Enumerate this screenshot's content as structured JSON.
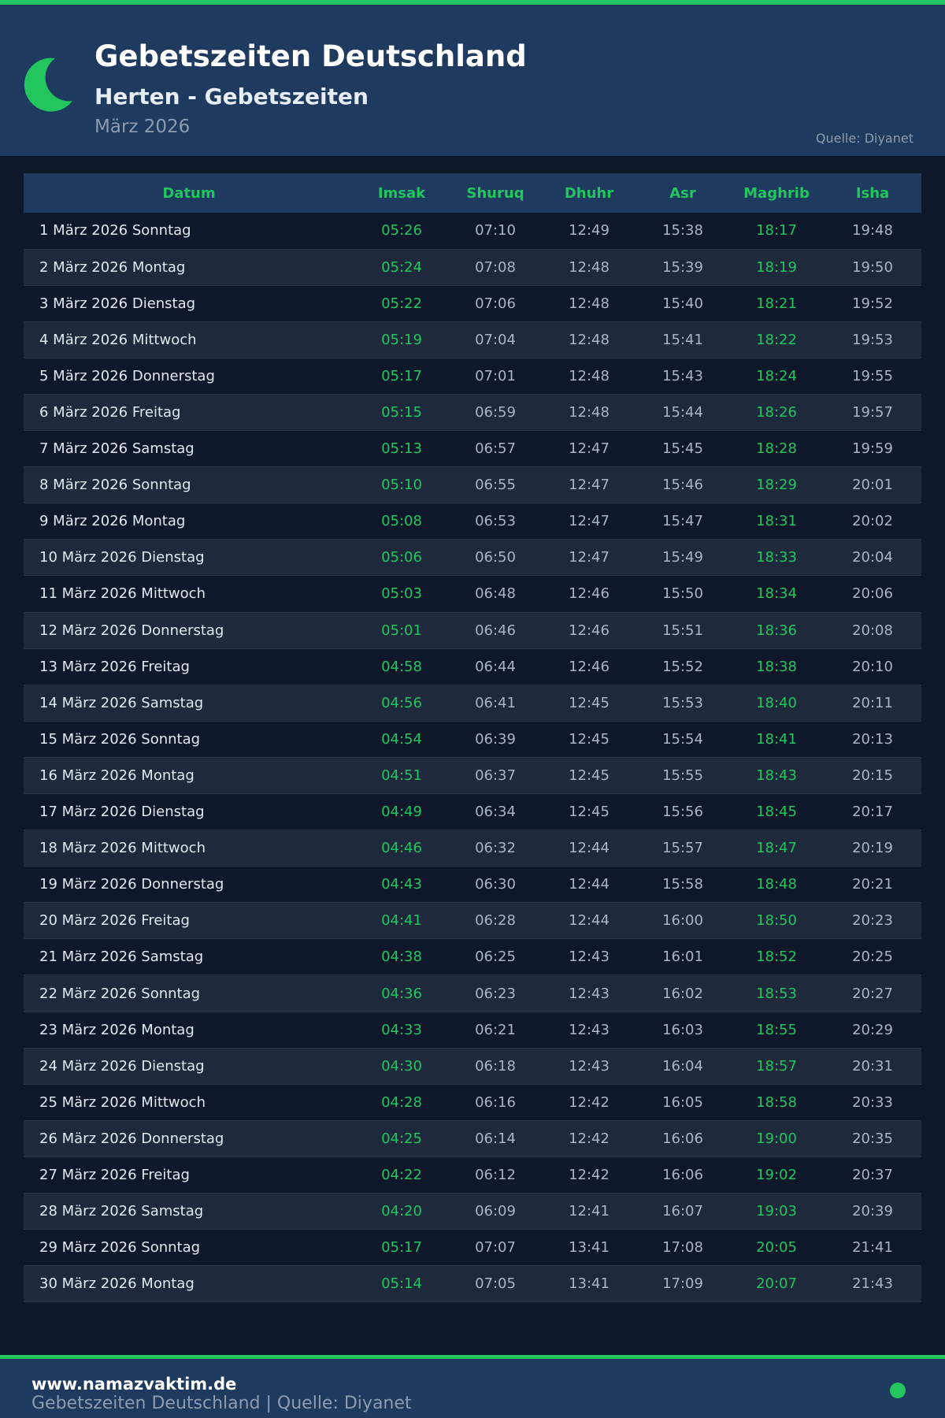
{
  "header": {
    "title": "Gebetszeiten Deutschland",
    "subtitle": "Herten - Gebetszeiten",
    "month": "März 2026",
    "source": "Quelle: Diyanet"
  },
  "colors": {
    "accent": "#22c55e",
    "header_bg": "#1e3a5f",
    "page_bg": "#0f172a"
  },
  "icons": {
    "logo": "crescent-moon-icon",
    "footer": "green-dot"
  },
  "table": {
    "columns": [
      "Datum",
      "Imsak",
      "Shuruq",
      "Dhuhr",
      "Asr",
      "Maghrib",
      "Isha"
    ],
    "rows": [
      [
        "1 März 2026 Sonntag",
        "05:26",
        "07:10",
        "12:49",
        "15:38",
        "18:17",
        "19:48"
      ],
      [
        "2 März 2026 Montag",
        "05:24",
        "07:08",
        "12:48",
        "15:39",
        "18:19",
        "19:50"
      ],
      [
        "3 März 2026 Dienstag",
        "05:22",
        "07:06",
        "12:48",
        "15:40",
        "18:21",
        "19:52"
      ],
      [
        "4 März 2026 Mittwoch",
        "05:19",
        "07:04",
        "12:48",
        "15:41",
        "18:22",
        "19:53"
      ],
      [
        "5 März 2026 Donnerstag",
        "05:17",
        "07:01",
        "12:48",
        "15:43",
        "18:24",
        "19:55"
      ],
      [
        "6 März 2026 Freitag",
        "05:15",
        "06:59",
        "12:48",
        "15:44",
        "18:26",
        "19:57"
      ],
      [
        "7 März 2026 Samstag",
        "05:13",
        "06:57",
        "12:47",
        "15:45",
        "18:28",
        "19:59"
      ],
      [
        "8 März 2026 Sonntag",
        "05:10",
        "06:55",
        "12:47",
        "15:46",
        "18:29",
        "20:01"
      ],
      [
        "9 März 2026 Montag",
        "05:08",
        "06:53",
        "12:47",
        "15:47",
        "18:31",
        "20:02"
      ],
      [
        "10 März 2026 Dienstag",
        "05:06",
        "06:50",
        "12:47",
        "15:49",
        "18:33",
        "20:04"
      ],
      [
        "11 März 2026 Mittwoch",
        "05:03",
        "06:48",
        "12:46",
        "15:50",
        "18:34",
        "20:06"
      ],
      [
        "12 März 2026 Donnerstag",
        "05:01",
        "06:46",
        "12:46",
        "15:51",
        "18:36",
        "20:08"
      ],
      [
        "13 März 2026 Freitag",
        "04:58",
        "06:44",
        "12:46",
        "15:52",
        "18:38",
        "20:10"
      ],
      [
        "14 März 2026 Samstag",
        "04:56",
        "06:41",
        "12:45",
        "15:53",
        "18:40",
        "20:11"
      ],
      [
        "15 März 2026 Sonntag",
        "04:54",
        "06:39",
        "12:45",
        "15:54",
        "18:41",
        "20:13"
      ],
      [
        "16 März 2026 Montag",
        "04:51",
        "06:37",
        "12:45",
        "15:55",
        "18:43",
        "20:15"
      ],
      [
        "17 März 2026 Dienstag",
        "04:49",
        "06:34",
        "12:45",
        "15:56",
        "18:45",
        "20:17"
      ],
      [
        "18 März 2026 Mittwoch",
        "04:46",
        "06:32",
        "12:44",
        "15:57",
        "18:47",
        "20:19"
      ],
      [
        "19 März 2026 Donnerstag",
        "04:43",
        "06:30",
        "12:44",
        "15:58",
        "18:48",
        "20:21"
      ],
      [
        "20 März 2026 Freitag",
        "04:41",
        "06:28",
        "12:44",
        "16:00",
        "18:50",
        "20:23"
      ],
      [
        "21 März 2026 Samstag",
        "04:38",
        "06:25",
        "12:43",
        "16:01",
        "18:52",
        "20:25"
      ],
      [
        "22 März 2026 Sonntag",
        "04:36",
        "06:23",
        "12:43",
        "16:02",
        "18:53",
        "20:27"
      ],
      [
        "23 März 2026 Montag",
        "04:33",
        "06:21",
        "12:43",
        "16:03",
        "18:55",
        "20:29"
      ],
      [
        "24 März 2026 Dienstag",
        "04:30",
        "06:18",
        "12:43",
        "16:04",
        "18:57",
        "20:31"
      ],
      [
        "25 März 2026 Mittwoch",
        "04:28",
        "06:16",
        "12:42",
        "16:05",
        "18:58",
        "20:33"
      ],
      [
        "26 März 2026 Donnerstag",
        "04:25",
        "06:14",
        "12:42",
        "16:06",
        "19:00",
        "20:35"
      ],
      [
        "27 März 2026 Freitag",
        "04:22",
        "06:12",
        "12:42",
        "16:06",
        "19:02",
        "20:37"
      ],
      [
        "28 März 2026 Samstag",
        "04:20",
        "06:09",
        "12:41",
        "16:07",
        "19:03",
        "20:39"
      ],
      [
        "29 März 2026 Sonntag",
        "05:17",
        "07:07",
        "13:41",
        "17:08",
        "20:05",
        "21:41"
      ],
      [
        "30 März 2026 Montag",
        "05:14",
        "07:05",
        "13:41",
        "17:09",
        "20:07",
        "21:43"
      ]
    ]
  },
  "footer": {
    "site": "www.namazvaktim.de",
    "text": "Gebetszeiten Deutschland | Quelle: Diyanet"
  }
}
